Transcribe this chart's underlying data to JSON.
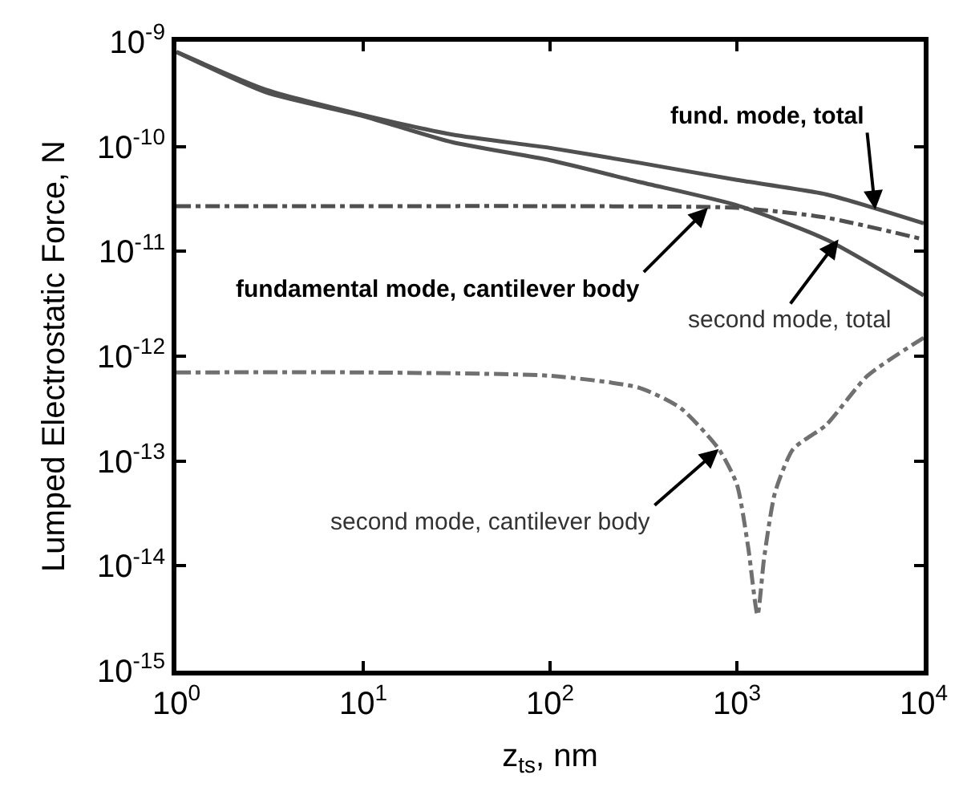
{
  "chart_data": {
    "type": "line",
    "xlabel": "z$_{ts}$, nm",
    "ylabel": "Lumped Electrostatic Force, N",
    "log": "xy",
    "xlim": [
      1,
      10000
    ],
    "ylim": [
      1e-15,
      1e-09
    ],
    "xticks": [
      {
        "value": 1,
        "label": "10$^{0}$"
      },
      {
        "value": 10,
        "label": "10$^{1}$"
      },
      {
        "value": 100,
        "label": "10$^{2}$"
      },
      {
        "value": 1000,
        "label": "10$^{3}$"
      },
      {
        "value": 10000,
        "label": "10$^{4}$"
      }
    ],
    "yticks": [
      {
        "value": 1e-15,
        "label": "10$^{-15}$"
      },
      {
        "value": 1e-14,
        "label": "10$^{-14}$"
      },
      {
        "value": 1e-13,
        "label": "10$^{-13}$"
      },
      {
        "value": 1e-12,
        "label": "10$^{-12}$"
      },
      {
        "value": 1e-11,
        "label": "10$^{-11}$"
      },
      {
        "value": 1e-10,
        "label": "10$^{-10}$"
      },
      {
        "value": 1e-09,
        "label": "10$^{-9}$"
      }
    ],
    "series": [
      {
        "color": "#505050",
        "line_style": "solid",
        "x": [
          1,
          3,
          10,
          30,
          100,
          300,
          1000,
          3000,
          10000
        ],
        "values": [
          8e-10,
          3.5e-10,
          2e-10,
          1.3e-10,
          9.7e-11,
          7e-11,
          4.8e-11,
          3.5e-11,
          1.85e-11
        ]
      },
      {
        "color": "#505050",
        "line_style": "solid",
        "x": [
          1,
          3,
          10,
          30,
          100,
          300,
          1000,
          3000,
          10000
        ],
        "values": [
          8e-10,
          3.3e-10,
          1.95e-10,
          1.1e-10,
          7.4e-11,
          4.6e-11,
          2.75e-11,
          1.3e-11,
          3.8e-12
        ]
      },
      {
        "color": "#505050",
        "line_style": "dashed",
        "x": [
          1,
          10,
          100,
          1000,
          3000,
          10000
        ],
        "values": [
          2.7e-11,
          2.7e-11,
          2.7e-11,
          2.6e-11,
          2.1e-11,
          1.3e-11
        ]
      },
      {
        "color": "#707070",
        "line_style": "dashed",
        "x": [
          1,
          10,
          100,
          300,
          500,
          800,
          1000,
          1150,
          1290,
          1400,
          1600,
          2000,
          3000,
          5000,
          10000
        ],
        "values": [
          7e-13,
          7e-13,
          6.5e-13,
          5e-13,
          3.2e-13,
          1.3e-13,
          6e-14,
          1.5e-14,
          3.4e-15,
          1.2e-14,
          5e-14,
          1.3e-13,
          2.2e-13,
          6.5e-13,
          1.5e-12
        ]
      }
    ],
    "annotations": [
      {
        "text": "fund. mode, total",
        "x": 5500,
        "y": 2.5e-11
      },
      {
        "text": "fundamental mode, cantilever body",
        "x": 700,
        "y": 2.6e-11
      },
      {
        "text": "second mode, total",
        "x": 3500,
        "y": 1.3e-11
      },
      {
        "text": "second mode, cantilever body",
        "x": 800,
        "y": 1.3e-13
      }
    ]
  }
}
